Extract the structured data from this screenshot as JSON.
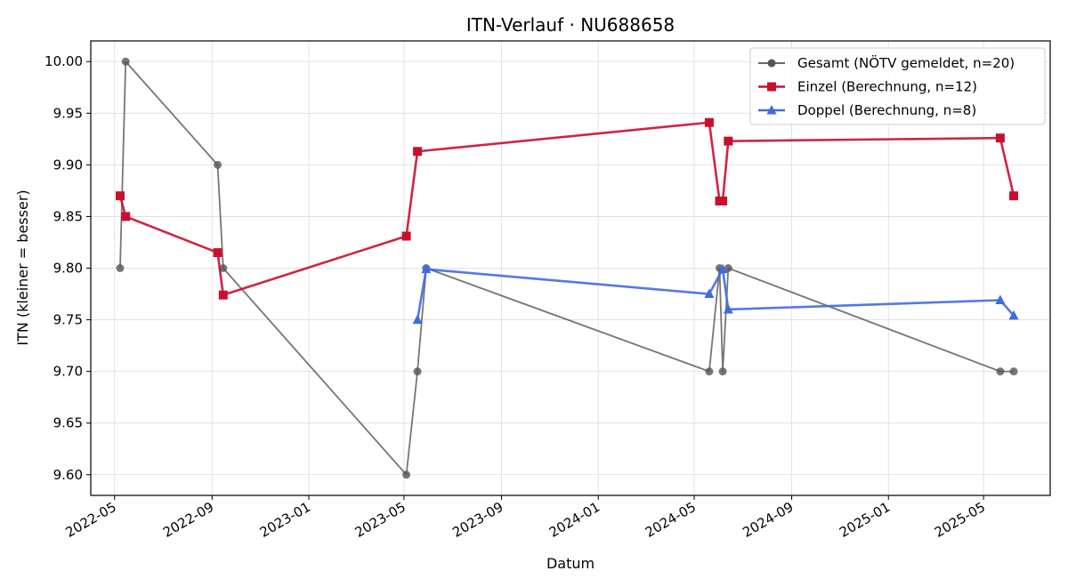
{
  "chart_data": {
    "type": "line",
    "title": "ITN-Verlauf · NU688658",
    "xlabel": "Datum",
    "ylabel": "ITN  (kleiner = besser)",
    "xlim": [
      "2022-04-01",
      "2025-07-24"
    ],
    "ylim": [
      9.58,
      10.02
    ],
    "xticks": [
      "2022-05",
      "2022-09",
      "2023-01",
      "2023-05",
      "2023-09",
      "2024-01",
      "2024-05",
      "2024-09",
      "2025-01",
      "2025-05"
    ],
    "yticks": [
      "9.60",
      "9.65",
      "9.70",
      "9.75",
      "9.80",
      "9.85",
      "9.90",
      "9.95",
      "10.00"
    ],
    "grid": true,
    "legend_position": "top-right",
    "series": [
      {
        "name": "Gesamt (NÖTV gemeldet, n=20)",
        "color": "#555555",
        "marker": "circle",
        "points": [
          [
            "2022-05-08",
            9.8
          ],
          [
            "2022-05-15",
            10.0
          ],
          [
            "2022-09-08",
            9.9
          ],
          [
            "2022-09-15",
            9.8
          ],
          [
            "2023-05-04",
            9.6
          ],
          [
            "2023-05-18",
            9.7
          ],
          [
            "2023-05-29",
            9.8
          ],
          [
            "2024-05-20",
            9.7
          ],
          [
            "2024-06-02",
            9.8
          ],
          [
            "2024-06-06",
            9.7
          ],
          [
            "2024-06-13",
            9.8
          ],
          [
            "2025-05-22",
            9.7
          ],
          [
            "2025-06-08",
            9.7
          ]
        ]
      },
      {
        "name": "Einzel (Berechnung, n=12)",
        "color": "#c8102e",
        "marker": "square",
        "points": [
          [
            "2022-05-08",
            9.87
          ],
          [
            "2022-05-15",
            9.85
          ],
          [
            "2022-09-08",
            9.815
          ],
          [
            "2022-09-15",
            9.774
          ],
          [
            "2023-05-04",
            9.831
          ],
          [
            "2023-05-18",
            9.913
          ],
          [
            "2024-05-20",
            9.941
          ],
          [
            "2024-06-02",
            9.865
          ],
          [
            "2024-06-06",
            9.865
          ],
          [
            "2024-06-13",
            9.923
          ],
          [
            "2025-05-22",
            9.926
          ],
          [
            "2025-06-08",
            9.87
          ]
        ]
      },
      {
        "name": "Doppel (Berechnung, n=8)",
        "color": "#4169e1",
        "marker": "triangle",
        "points": [
          [
            "2023-05-18",
            9.75
          ],
          [
            "2023-05-29",
            9.799
          ],
          [
            "2024-05-20",
            9.775
          ],
          [
            "2024-06-06",
            9.799
          ],
          [
            "2024-06-13",
            9.76
          ],
          [
            "2025-05-22",
            9.769
          ],
          [
            "2025-06-08",
            9.754
          ]
        ]
      }
    ]
  }
}
